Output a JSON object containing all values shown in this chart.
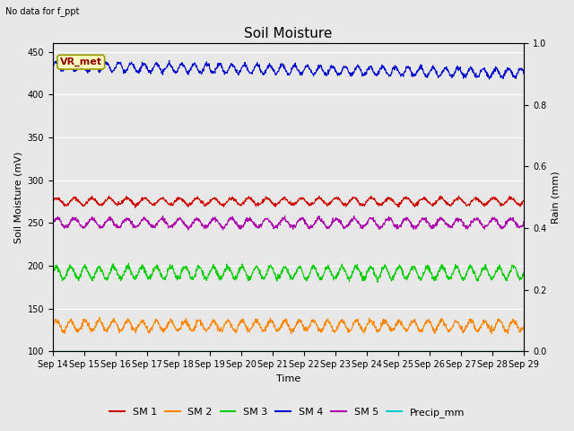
{
  "title": "Soil Moisture",
  "no_data_text": "No data for f_ppt",
  "vr_met_label": "VR_met",
  "xlabel": "Time",
  "ylabel_left": "Soil Moisture (mV)",
  "ylabel_right": "Rain (mm)",
  "ylim_left": [
    100,
    460
  ],
  "ylim_right": [
    0.0,
    1.0
  ],
  "yticks_left": [
    100,
    150,
    200,
    250,
    300,
    350,
    400,
    450
  ],
  "yticks_right": [
    0.0,
    0.2,
    0.4,
    0.6,
    0.8,
    1.0
  ],
  "n_points": 1500,
  "sm1_base": 275,
  "sm1_amp": 4,
  "sm1_freq": 1.8,
  "sm2_base": 130,
  "sm2_amp": 6,
  "sm2_freq": 2.2,
  "sm3_base": 192,
  "sm3_amp": 7,
  "sm3_freq": 2.2,
  "sm4_base": 433,
  "sm4_amp": 5,
  "sm4_freq": 2.5,
  "sm4_trend": -8,
  "sm5_base": 250,
  "sm5_amp": 5,
  "sm5_freq": 1.8,
  "precip_base": 100,
  "sm1_color": "#CC0000",
  "sm2_color": "#FF8800",
  "sm3_color": "#00CC00",
  "sm4_color": "#0000CC",
  "sm5_color": "#AA00AA",
  "precip_color": "#00CCCC",
  "background_color": "#E8E8E8",
  "grid_color": "#FFFFFF",
  "fig_bg_color": "#E8E8E8",
  "title_fontsize": 11,
  "axis_label_fontsize": 8,
  "tick_fontsize": 7,
  "legend_fontsize": 8,
  "xtick_labels": [
    "Sep 14",
    "Sep 15",
    "Sep 16",
    "Sep 17",
    "Sep 18",
    "Sep 19",
    "Sep 20",
    "Sep 21",
    "Sep 22",
    "Sep 23",
    "Sep 24",
    "Sep 25",
    "Sep 26",
    "Sep 27",
    "Sep 28",
    "Sep 29"
  ]
}
